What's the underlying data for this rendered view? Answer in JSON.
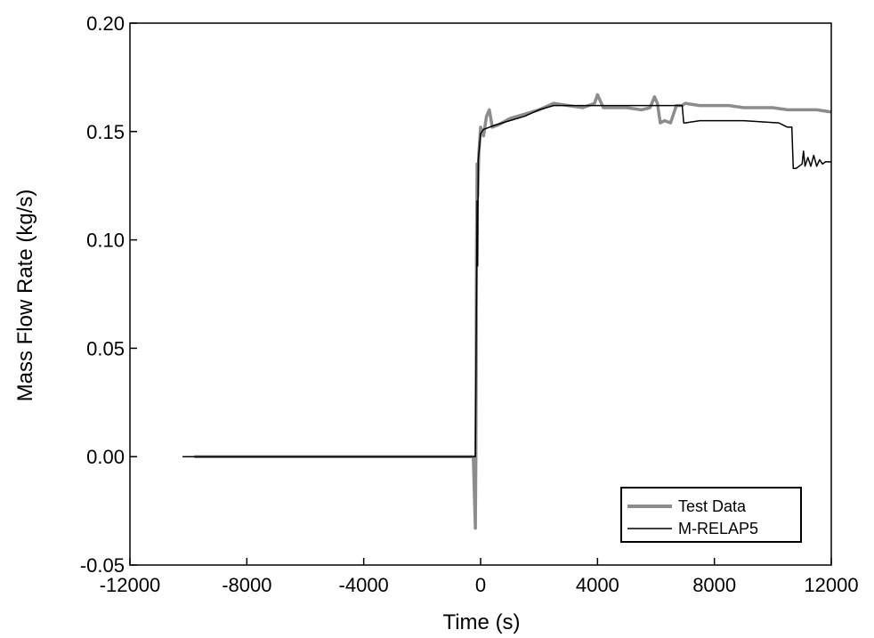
{
  "chart_data": {
    "type": "line",
    "xlabel": "Time (s)",
    "ylabel": "Mass Flow Rate (kg/s)",
    "xlim": [
      -12000,
      12000
    ],
    "ylim": [
      -0.05,
      0.2
    ],
    "xticks": [
      -12000,
      -8000,
      -4000,
      0,
      4000,
      8000,
      12000
    ],
    "xtick_labels": [
      "-12000",
      "-8000",
      "-4000",
      "0",
      "4000",
      "8000",
      "12000"
    ],
    "yticks": [
      -0.05,
      0.0,
      0.05,
      0.1,
      0.15,
      0.2
    ],
    "ytick_labels": [
      "-0.05",
      "0.00",
      "0.05",
      "0.10",
      "0.15",
      "0.20"
    ],
    "grid": false,
    "legend_position": "bottom-right",
    "series": [
      {
        "name": "Test Data",
        "color": "#8c8c8c",
        "x": [
          -9800,
          -6000,
          -3000,
          -250,
          -180,
          -160,
          -140,
          -120,
          -100,
          -60,
          0,
          100,
          200,
          300,
          400,
          600,
          1000,
          1500,
          2000,
          2500,
          3000,
          3500,
          3900,
          4000,
          4200,
          4600,
          5000,
          5500,
          5800,
          5950,
          6050,
          6150,
          6300,
          6500,
          6700,
          6900,
          7000,
          7500,
          8000,
          8500,
          9000,
          9500,
          10000,
          10500,
          11000,
          11500,
          12000
        ],
        "y": [
          0.0,
          0.0,
          0.0,
          0.0,
          -0.033,
          0.0,
          0.095,
          0.135,
          0.12,
          0.14,
          0.152,
          0.148,
          0.157,
          0.16,
          0.152,
          0.153,
          0.156,
          0.158,
          0.16,
          0.163,
          0.162,
          0.161,
          0.163,
          0.167,
          0.161,
          0.161,
          0.161,
          0.16,
          0.161,
          0.166,
          0.163,
          0.154,
          0.155,
          0.154,
          0.162,
          0.162,
          0.163,
          0.162,
          0.162,
          0.162,
          0.161,
          0.161,
          0.161,
          0.16,
          0.16,
          0.16,
          0.159
        ]
      },
      {
        "name": "M-RELAP5",
        "color": "#000000",
        "x": [
          -10200,
          -200,
          -180,
          -120,
          -100,
          -80,
          0,
          100,
          500,
          1000,
          1500,
          2000,
          2500,
          3000,
          4000,
          5000,
          6000,
          6900,
          6950,
          7000,
          7500,
          8000,
          9000,
          10200,
          10500,
          10650,
          10700,
          10800,
          11000,
          11050,
          11100,
          11200,
          11300,
          11400,
          11500,
          11600,
          11700,
          11800,
          12000
        ],
        "y": [
          0.0,
          0.0,
          0.0,
          0.118,
          0.088,
          0.137,
          0.149,
          0.151,
          0.153,
          0.155,
          0.157,
          0.16,
          0.162,
          0.162,
          0.162,
          0.162,
          0.162,
          0.162,
          0.154,
          0.154,
          0.155,
          0.155,
          0.155,
          0.154,
          0.152,
          0.152,
          0.133,
          0.133,
          0.135,
          0.141,
          0.134,
          0.138,
          0.134,
          0.139,
          0.134,
          0.137,
          0.135,
          0.136,
          0.136
        ]
      }
    ]
  }
}
